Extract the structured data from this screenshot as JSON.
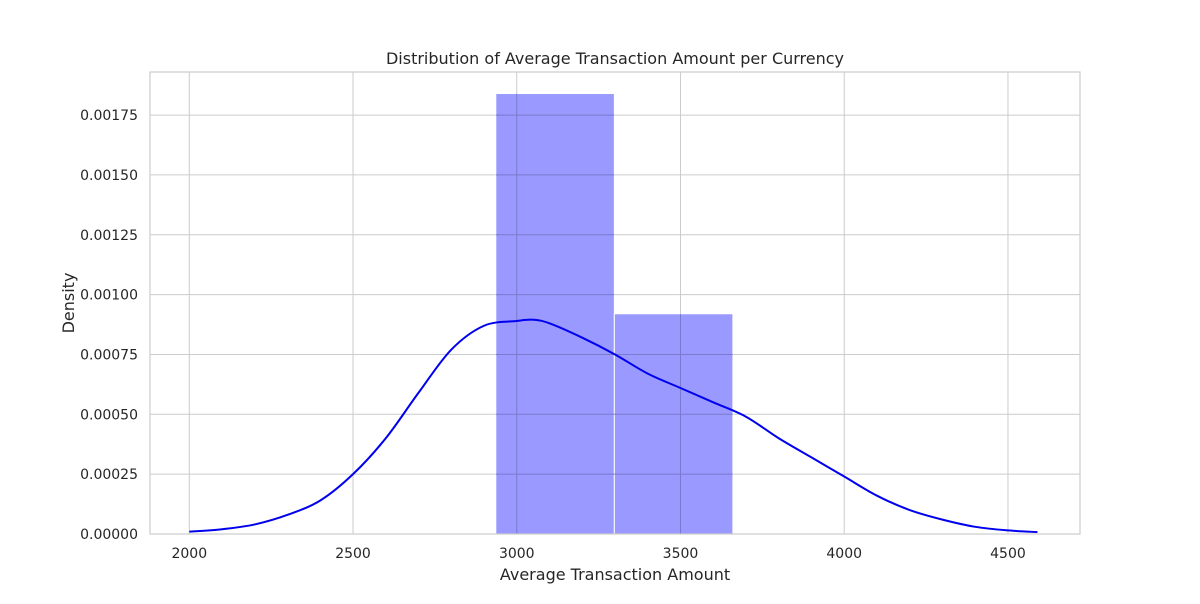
{
  "chart_data": {
    "type": "histogram",
    "title": "Distribution of Average Transaction Amount per Currency",
    "xlabel": "Average Transaction Amount",
    "ylabel": "Density",
    "xlim": [
      1880,
      4720
    ],
    "ylim": [
      0,
      0.00193
    ],
    "x_ticks": [
      2000,
      2500,
      3000,
      3500,
      4000,
      4500
    ],
    "y_ticks": [
      0,
      0.00025,
      0.0005,
      0.00075,
      0.001,
      0.00125,
      0.0015,
      0.00175
    ],
    "x_tick_labels": [
      "2000",
      "2500",
      "3000",
      "3500",
      "4000",
      "4500"
    ],
    "y_tick_labels": [
      "0.00000",
      "0.00025",
      "0.00050",
      "0.00075",
      "0.00100",
      "0.00125",
      "0.00150",
      "0.00175"
    ],
    "grid": true,
    "bars": [
      {
        "x0": 2936,
        "x1": 3298,
        "density": 0.00184
      },
      {
        "x0": 3298,
        "x1": 3660,
        "density": 0.00092
      }
    ],
    "kde": {
      "x": [
        2000,
        2100,
        2200,
        2300,
        2400,
        2500,
        2600,
        2700,
        2800,
        2900,
        3000,
        3050,
        3100,
        3200,
        3300,
        3400,
        3500,
        3600,
        3700,
        3800,
        3900,
        4000,
        4100,
        4200,
        4300,
        4400,
        4500,
        4590
      ],
      "y": [
        1e-05,
        2e-05,
        4e-05,
        8e-05,
        0.00014,
        0.00025,
        0.0004,
        0.00059,
        0.00077,
        0.00087,
        0.00089,
        0.000895,
        0.00088,
        0.00082,
        0.00075,
        0.00067,
        0.00061,
        0.00055,
        0.00049,
        0.0004,
        0.00032,
        0.00024,
        0.00016,
        0.0001,
        6e-05,
        3e-05,
        1.5e-05,
        8e-06
      ]
    },
    "colors": {
      "bar_fill": "#9999ff",
      "bar_edge": "#ffffff",
      "kde_line": "#0000ee",
      "grid": "#cccccc"
    }
  }
}
